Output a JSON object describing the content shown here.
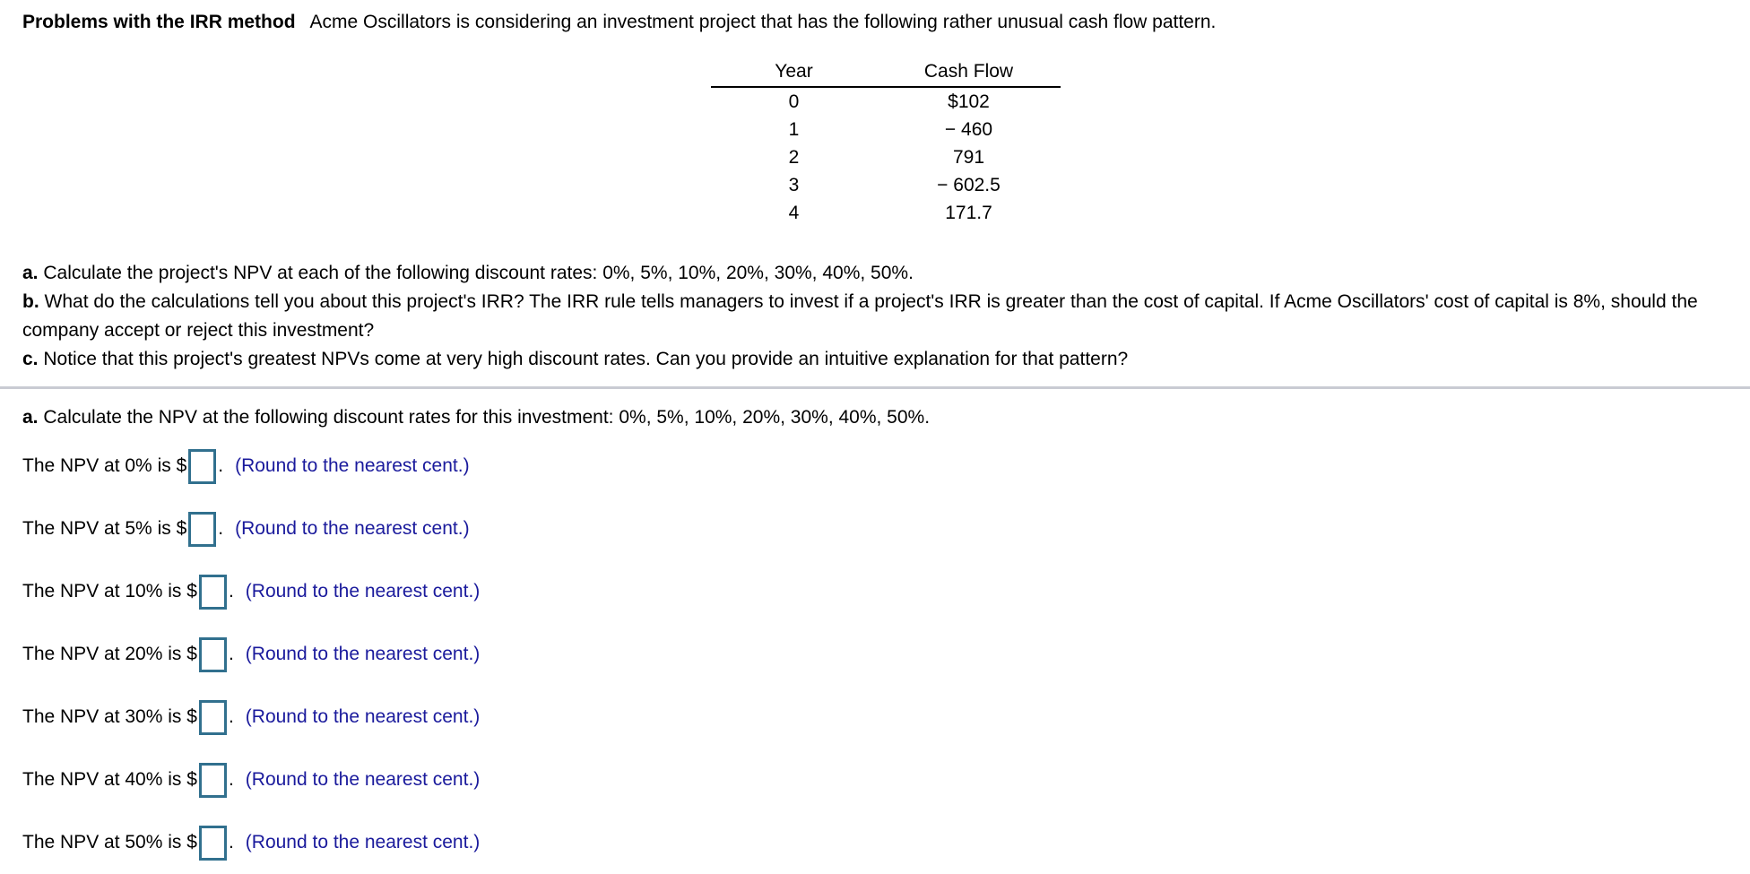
{
  "page": {
    "title_bold": "Problems with the IRR method",
    "title_rest": "Acme Oscillators is considering an investment project that has the following rather unusual cash flow pattern."
  },
  "cashflow_table": {
    "headers": [
      "Year",
      "Cash Flow"
    ],
    "rows": [
      {
        "year": "0",
        "cash_flow": "$102"
      },
      {
        "year": "1",
        "cash_flow": "− 460"
      },
      {
        "year": "2",
        "cash_flow": "791"
      },
      {
        "year": "3",
        "cash_flow": "− 602.5"
      },
      {
        "year": "4",
        "cash_flow": "171.7"
      }
    ]
  },
  "questions": [
    {
      "letter": "a.",
      "text": "Calculate the project's NPV at each of the following discount rates: 0%, 5%, 10%, 20%, 30%, 40%, 50%."
    },
    {
      "letter": "b.",
      "text": "What do the calculations tell you about this project's IRR? The IRR rule tells managers to invest if a project's IRR is greater than the cost of capital. If Acme Oscillators' cost of capital is 8%, should the company accept or reject this investment?"
    },
    {
      "letter": "c.",
      "text": "Notice that this project's greatest NPVs come at very high discount rates. Can you provide an intuitive explanation for that pattern?"
    }
  ],
  "answer_section": {
    "intro_letter": "a.",
    "intro_text": "Calculate the NPV at the following discount rates for this investment: 0%, 5%, 10%, 20%, 30%, 40%, 50%.",
    "rows": [
      {
        "rate": "0%",
        "label": "The NPV at 0% is $",
        "input_value": "",
        "period": ".",
        "hint": "(Round to the nearest cent.)"
      },
      {
        "rate": "5%",
        "label": "The NPV at 5% is $",
        "input_value": "",
        "period": ".",
        "hint": "(Round to the nearest cent.)"
      },
      {
        "rate": "10%",
        "label": "The NPV at 10% is $",
        "input_value": "",
        "period": ".",
        "hint": "(Round to the nearest cent.)"
      },
      {
        "rate": "20%",
        "label": "The NPV at 20% is $",
        "input_value": "",
        "period": ".",
        "hint": "(Round to the nearest cent.)"
      },
      {
        "rate": "30%",
        "label": "The NPV at 30% is $",
        "input_value": "",
        "period": ".",
        "hint": "(Round to the nearest cent.)"
      },
      {
        "rate": "40%",
        "label": "The NPV at 40% is $",
        "input_value": "",
        "period": ".",
        "hint": "(Round to the nearest cent.)"
      },
      {
        "rate": "50%",
        "label": "The NPV at 50% is $",
        "input_value": "",
        "period": ".",
        "hint": "(Round to the nearest cent.)"
      }
    ]
  },
  "colors": {
    "hint_text_blue": "#1a1a9c",
    "input_border_teal": "#31708e",
    "divider_gray": "#c9cbd3",
    "table_rule_black": "#000000"
  }
}
